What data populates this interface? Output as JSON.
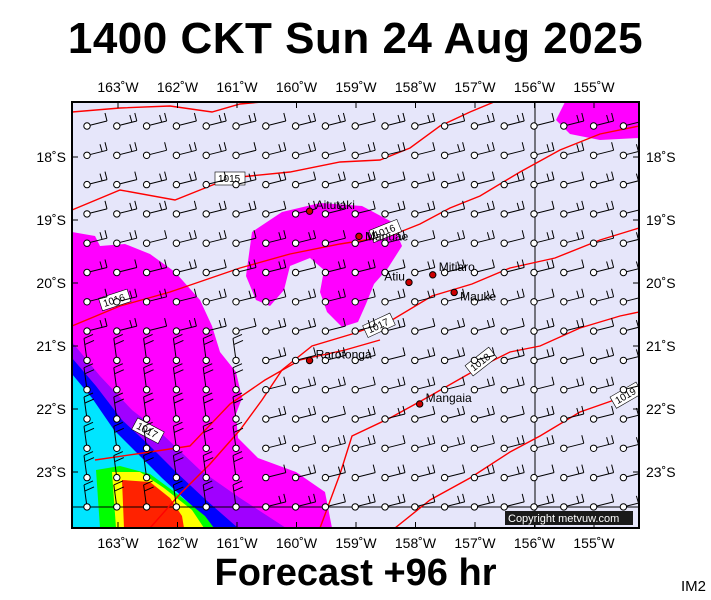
{
  "header": {
    "title": "1400 CKT Sun 24 Aug 2025"
  },
  "footer": {
    "forecast": "Forecast +96 hr",
    "image_id": "IM2"
  },
  "copyright": "Copyright metvuw.com",
  "axes": {
    "longitude": [
      "163˚W",
      "162˚W",
      "161˚W",
      "160˚W",
      "159˚W",
      "158˚W",
      "157˚W",
      "156˚W",
      "155˚W"
    ],
    "latitude": [
      "18˚S",
      "19˚S",
      "20˚S",
      "21˚S",
      "22˚S",
      "23˚S"
    ]
  },
  "towns": [
    {
      "name": "Aitutaki",
      "lon": -159.78,
      "lat": -18.86
    },
    {
      "name": "Manuae",
      "lon": -158.95,
      "lat": -19.26
    },
    {
      "name": "Atiu",
      "lon": -158.11,
      "lat": -19.99
    },
    {
      "name": "Mitiaro",
      "lon": -157.71,
      "lat": -19.87
    },
    {
      "name": "Mauke",
      "lon": -157.35,
      "lat": -20.15
    },
    {
      "name": "Rarotonga",
      "lon": -159.78,
      "lat": -21.23
    },
    {
      "name": "Mangaia",
      "lon": -157.93,
      "lat": -21.92
    }
  ],
  "isobars": [
    "1015",
    "1016",
    "1016",
    "1017",
    "1017",
    "1018",
    "1019"
  ],
  "colors": {
    "background": "#e6e6fa",
    "rain_light": "#ff00ff",
    "rain_medium": "#a000ff",
    "rain_heavy": "#0000ff",
    "rain_cyan": "#00e5ff",
    "rain_green": "#00ff00",
    "rain_yellow": "#ffff00",
    "rain_red": "#ff2200",
    "isobar": "#ff0000"
  }
}
